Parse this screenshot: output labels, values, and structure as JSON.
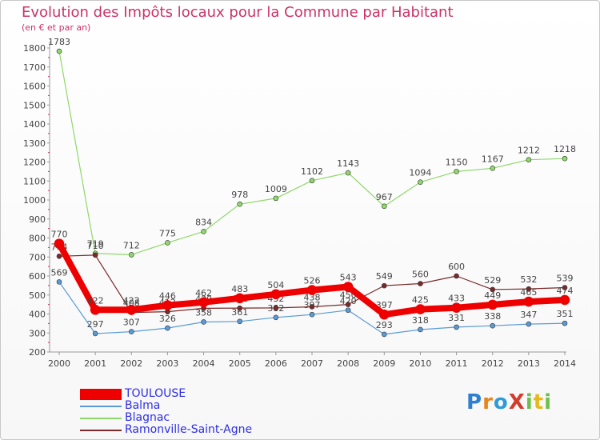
{
  "header": {
    "title": "Evolution des Impôts locaux pour la Commune par Habitant",
    "subtitle": "(en € et par an)"
  },
  "brand": {
    "logo": "ProXiti"
  },
  "chart_data": {
    "type": "line",
    "x": [
      2000,
      2001,
      2002,
      2003,
      2004,
      2005,
      2006,
      2007,
      2008,
      2009,
      2010,
      2011,
      2012,
      2013,
      2014
    ],
    "ylim": [
      200,
      1800
    ],
    "yticks": [
      200,
      300,
      400,
      500,
      600,
      700,
      800,
      900,
      1000,
      1100,
      1200,
      1300,
      1400,
      1500,
      1600,
      1700,
      1800
    ],
    "grid": false,
    "legend_position": "bottom-left",
    "series": [
      {
        "name": "Balma",
        "color": "#5b9bd5",
        "values": [
          569,
          297,
          307,
          326,
          358,
          361,
          382,
          397,
          420,
          293,
          318,
          331,
          338,
          347,
          351
        ]
      },
      {
        "name": "Blagnac",
        "color": "#8fd86b",
        "values": [
          1783,
          719,
          712,
          775,
          834,
          978,
          1009,
          1102,
          1143,
          967,
          1094,
          1150,
          1167,
          1212,
          1218
        ]
      },
      {
        "name": "Ramonville-Saint-Agne",
        "color": "#7a2a2a",
        "values": [
          704,
          710,
          408,
          412,
          430,
          431,
          432,
          438,
          450,
          549,
          560,
          600,
          529,
          532,
          539
        ]
      },
      {
        "name": "TOULOUSE",
        "color": "#ee0000",
        "values": [
          770,
          422,
          422,
          446,
          462,
          483,
          504,
          526,
          543,
          397,
          425,
          433,
          449,
          465,
          474
        ]
      }
    ]
  }
}
